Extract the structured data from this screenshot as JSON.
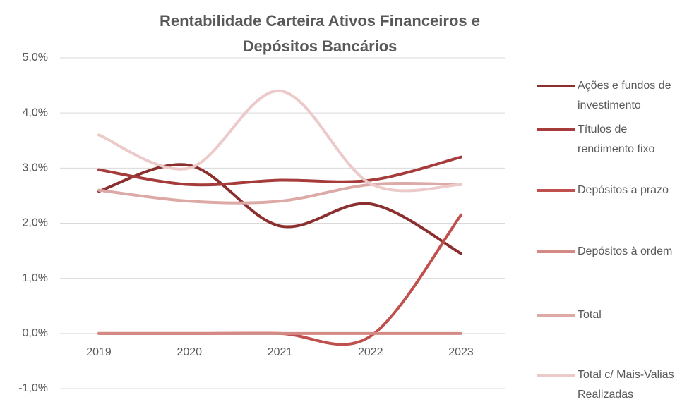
{
  "chart_data": {
    "type": "line",
    "title": "Rentabilidade Carteira Ativos Financeiros e Depósitos Bancários",
    "categories": [
      "2019",
      "2020",
      "2021",
      "2022",
      "2023"
    ],
    "series": [
      {
        "name": "Ações e fundos de investimento",
        "color": "#8b2e2e",
        "values": [
          2.58,
          3.05,
          1.95,
          2.35,
          1.45
        ]
      },
      {
        "name": "Títulos de rendimento fixo",
        "color": "#a53b3b",
        "values": [
          2.97,
          2.7,
          2.78,
          2.78,
          3.2
        ]
      },
      {
        "name": "Depósitos a prazo",
        "color": "#c0504d",
        "values": [
          0,
          0,
          0,
          -0.05,
          2.15
        ]
      },
      {
        "name": "Depósitos à ordem",
        "color": "#d48a84",
        "values": [
          0,
          0,
          0,
          0,
          0
        ]
      },
      {
        "name": "Total",
        "color": "#dca9a6",
        "values": [
          2.6,
          2.4,
          2.4,
          2.7,
          2.7
        ]
      },
      {
        "name": "Total c/ Mais-Valias Realizadas",
        "color": "#eccaca",
        "values": [
          3.6,
          3.0,
          4.4,
          2.72,
          2.7
        ]
      }
    ],
    "ylim": [
      -1,
      5
    ],
    "yticks": [
      {
        "value": -1,
        "label": "-1,0%"
      },
      {
        "value": 0,
        "label": "0,0%"
      },
      {
        "value": 1,
        "label": "1,0%"
      },
      {
        "value": 2,
        "label": "2,0%"
      },
      {
        "value": 3,
        "label": "3,0%"
      },
      {
        "value": 4,
        "label": "4,0%"
      },
      {
        "value": 5,
        "label": "5,0%"
      }
    ],
    "grid": true,
    "smooth": true,
    "legend": "right"
  }
}
